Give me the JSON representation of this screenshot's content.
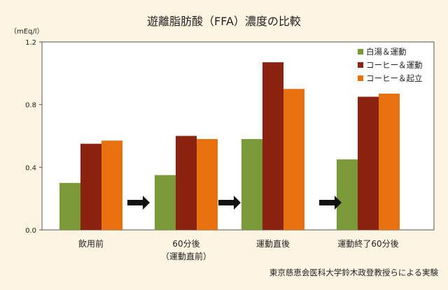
{
  "chart_data": {
    "type": "bar",
    "title": "遊離脂肪酸（FFA）濃度の比較",
    "ylabel": "（mEq/l）",
    "ylim": [
      0,
      1.2
    ],
    "yticks": [
      "0.0",
      "0.4",
      "0.8",
      "1.2"
    ],
    "categories": [
      [
        "飲用前"
      ],
      [
        "60分後",
        "（運動直前）"
      ],
      [
        "運動直後"
      ],
      [
        "運動終了60分後"
      ]
    ],
    "series": [
      {
        "name": "白湯＆運動",
        "color": "#7a9a3a",
        "values": [
          0.3,
          0.35,
          0.58,
          0.45
        ]
      },
      {
        "name": "コーヒー＆運動",
        "color": "#8b2310",
        "values": [
          0.55,
          0.6,
          1.07,
          0.85
        ]
      },
      {
        "name": "コーヒー＆起立",
        "color": "#e8700e",
        "values": [
          0.57,
          0.58,
          0.9,
          0.87
        ]
      }
    ],
    "legend_position": "top-right",
    "grid": false,
    "annotations": [
      "arrow",
      "arrow",
      "arrow"
    ],
    "source": "東京慈恵会医科大学鈴木政登教授らによる実験"
  }
}
